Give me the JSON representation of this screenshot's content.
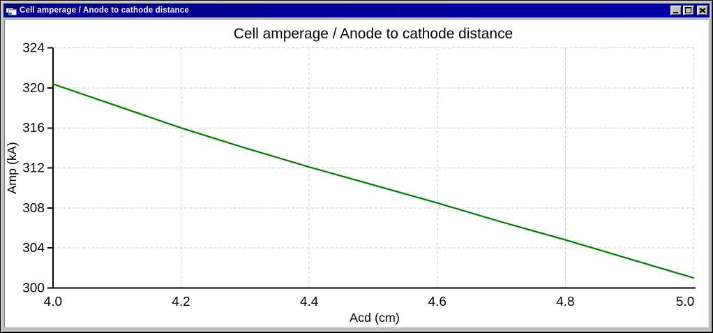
{
  "window": {
    "title": "Cell amperage / Anode to cathode distance",
    "titlebar_color": "#000090",
    "icon": "form-window-icon",
    "controls": [
      {
        "name": "minimize",
        "icon": "minimize-icon"
      },
      {
        "name": "maximize",
        "icon": "maximize-icon"
      },
      {
        "name": "close",
        "icon": "close-icon"
      }
    ]
  },
  "chart_data": {
    "type": "line",
    "title": "Cell amperage / Anode to cathode distance",
    "xlabel": "Acd (cm)",
    "ylabel": "Amp (kA)",
    "xlim": [
      4.0,
      5.0
    ],
    "ylim": [
      300,
      324
    ],
    "xticks": [
      4.0,
      4.2,
      4.4,
      4.6,
      4.8,
      5.0
    ],
    "yticks": [
      300,
      304,
      308,
      312,
      316,
      320,
      324
    ],
    "grid": "dashed",
    "legend": "none",
    "colors": {
      "grid": "#c9c9c9",
      "axis": "#000000",
      "text": "#000000",
      "background": "#ffffff"
    },
    "series": [
      {
        "name": "Cell amperage",
        "color": "#008000",
        "x": [
          4.0,
          4.1,
          4.2,
          4.3,
          4.4,
          4.5,
          4.6,
          4.7,
          4.8,
          4.9,
          5.0
        ],
        "y": [
          320.4,
          318.2,
          316.0,
          314.0,
          312.1,
          310.3,
          308.5,
          306.6,
          304.8,
          302.9,
          301.0
        ]
      }
    ]
  }
}
